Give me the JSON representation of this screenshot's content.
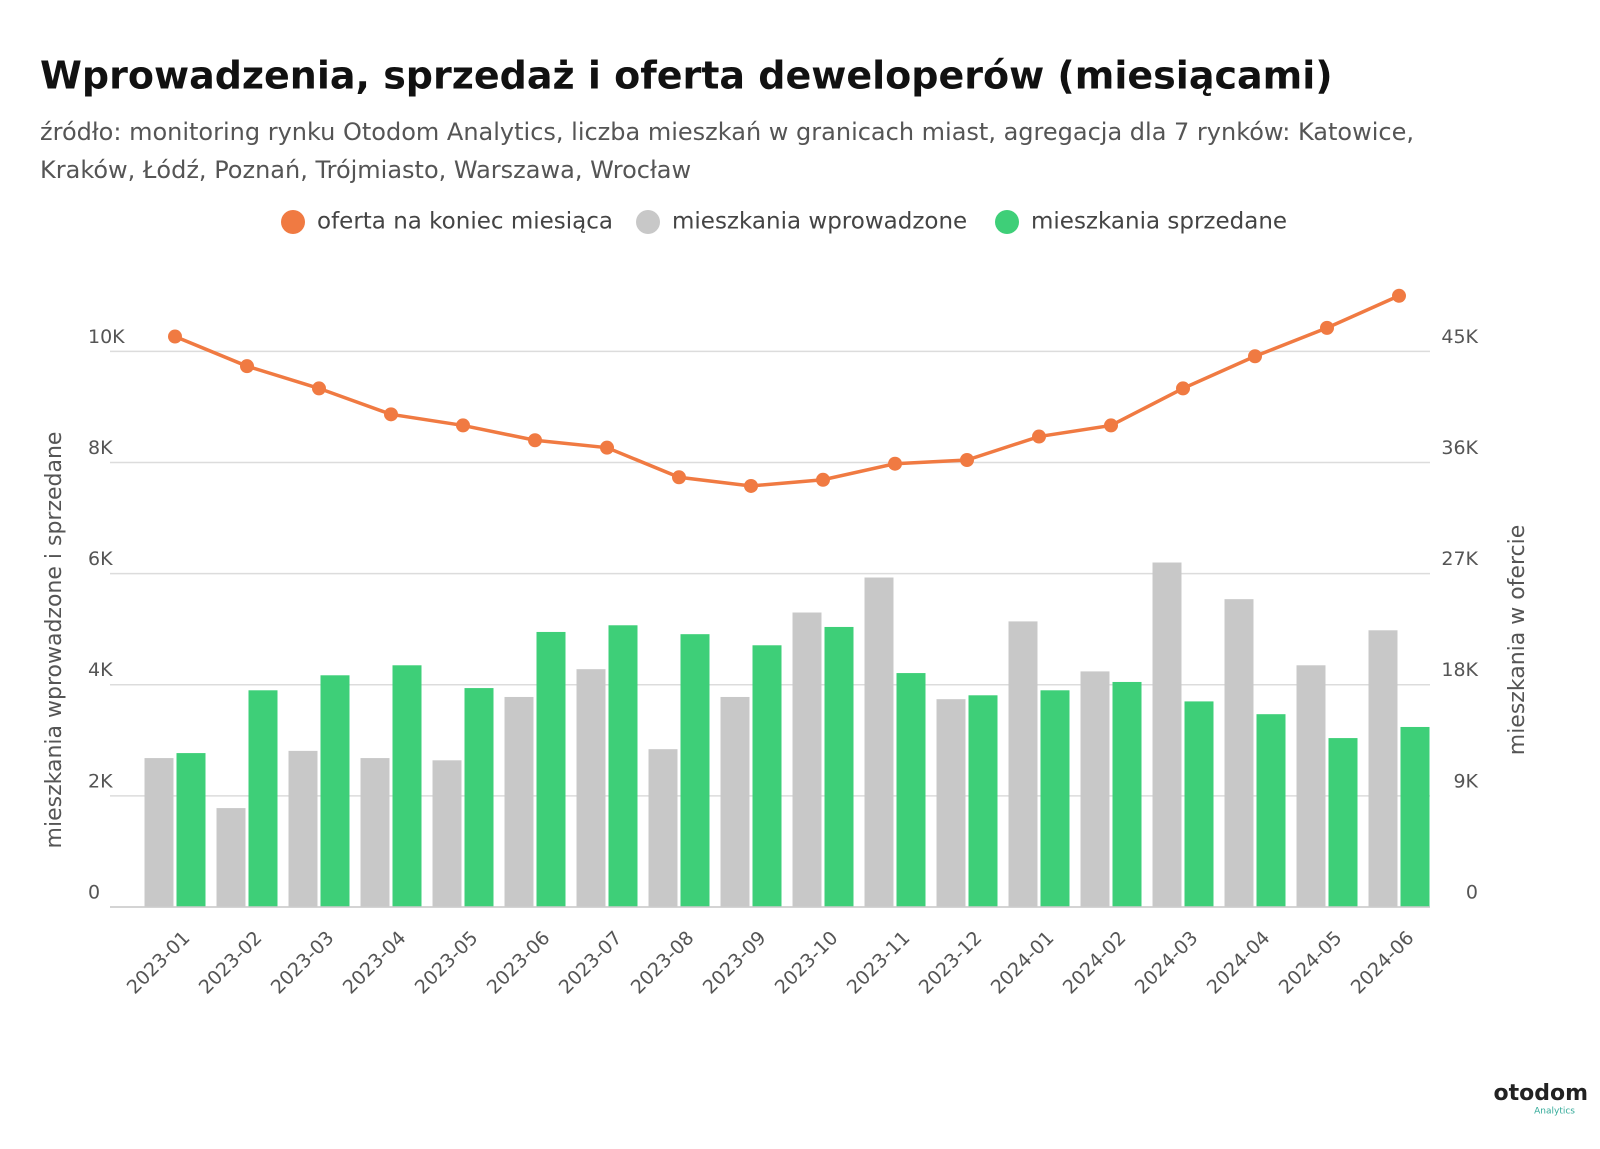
{
  "chart_data": {
    "type": "bar_line",
    "title": "Wprowadzenia, sprzedaż i oferta deweloperów (miesiącami)",
    "subtitle": [
      "źródło: monitoring rynku Otodom Analytics, liczba mieszkań w granicach miast, agregacja dla 7 rynków: Katowice,",
      "Kraków, Łódź, Poznań, Trójmiasto, Warszawa, Wrocław"
    ],
    "y_label": "mieszkania wprowadzone i sprzedane",
    "y2_label": "mieszkania w ofercie",
    "categories": [
      "2023-01",
      "2023-02",
      "2023-03",
      "2023-04",
      "2023-05",
      "2023-06",
      "2023-07",
      "2023-08",
      "2023-09",
      "2023-10",
      "2023-11",
      "2023-12",
      "2024-01",
      "2024-02",
      "2024-03",
      "2024-04",
      "2024-05",
      "2024-06"
    ],
    "series": [
      {
        "name": "oferta na koniec miesiąca",
        "color": "#f07a42",
        "kind": "line",
        "axis": "y2",
        "values": [
          46200,
          43800,
          42000,
          39900,
          39000,
          37800,
          37200,
          34800,
          34100,
          34600,
          35900,
          36200,
          38100,
          39000,
          42000,
          44600,
          46900,
          49500
        ]
      },
      {
        "name": "mieszkania wprowadzone",
        "color": "#c8c8c8",
        "kind": "bar",
        "values": [
          2680,
          1780,
          2810,
          2680,
          2640,
          3780,
          4280,
          2840,
          3780,
          5300,
          5930,
          3740,
          5140,
          4240,
          6200,
          5540,
          4350,
          4980
        ]
      },
      {
        "name": "mieszkania sprzedane",
        "color": "#3ecf78",
        "kind": "bar",
        "values": [
          2770,
          3900,
          4170,
          4350,
          3940,
          4950,
          5070,
          4910,
          4710,
          5040,
          4210,
          3810,
          3900,
          4050,
          3700,
          3470,
          3040,
          3240
        ]
      }
    ],
    "ylim": [
      0,
      11500
    ],
    "yticks": [
      0,
      {
        "value": 2000,
        "label": "2K"
      },
      {
        "value": 4000,
        "label": "4K"
      },
      {
        "value": 6000,
        "label": "6K"
      },
      {
        "value": 8000,
        "label": "8K"
      },
      {
        "value": 10000,
        "label": "10K"
      }
    ],
    "y2lim": [
      0,
      51750
    ],
    "y2ticks": [
      0,
      {
        "value": 9000,
        "label": "9K"
      },
      {
        "value": 18000,
        "label": "18K"
      },
      {
        "value": 27000,
        "label": "27K"
      },
      {
        "value": 36000,
        "label": "36K"
      },
      {
        "value": 45000,
        "label": "45K"
      }
    ],
    "grid": true,
    "legend": "top"
  },
  "logo": {
    "name": "otodom",
    "sub": "Analytics"
  }
}
